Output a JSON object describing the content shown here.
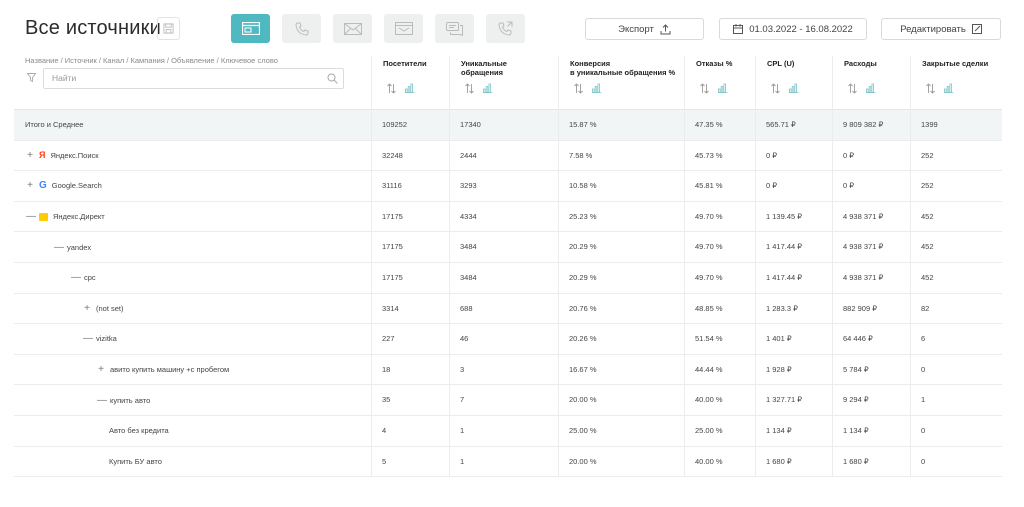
{
  "header": {
    "title": "Все источники",
    "export_label": "Экспорт",
    "date_range": "01.03.2022 - 16.08.2022",
    "edit_label": "Редактировать",
    "type_tabs": [
      "browser-icon",
      "phone-icon",
      "mail-icon",
      "envelope-icon",
      "chat-icon",
      "callback-icon"
    ],
    "active_tab": 0
  },
  "filter": {
    "breadcrumb": "Название / Источник / Канал / Кампания / Объявление / Ключевое слово",
    "search_placeholder": "Найти"
  },
  "columns": [
    "Посетители",
    "Уникальные\nобращения",
    "Конверсия\nв уникальные обращения %",
    "Отказы %",
    "CPL (U)",
    "Расходы",
    "Закрытые сделки"
  ],
  "total": {
    "label": "Итого и Среднее",
    "values": [
      "109252",
      "17340",
      "15.87 %",
      "47.35 %",
      "565.71 ₽",
      "9 809 382 ₽",
      "1399"
    ]
  },
  "rows": [
    {
      "label": "Яндекс.Поиск",
      "toggle": "+",
      "logo": "yandex",
      "values": [
        "32248",
        "2444",
        "7.58 %",
        "45.73 %",
        "0 ₽",
        "0 ₽",
        "252"
      ]
    },
    {
      "label": "Google.Search",
      "toggle": "+",
      "logo": "google",
      "values": [
        "31116",
        "3293",
        "10.58 %",
        "45.81 %",
        "0 ₽",
        "0 ₽",
        "252"
      ]
    },
    {
      "label": "Яндекс.Директ",
      "toggle": "—",
      "logo": "direct",
      "values": [
        "17175",
        "4334",
        "25.23 %",
        "49.70 %",
        "1 139.45 ₽",
        "4 938 371 ₽",
        "452"
      ]
    },
    {
      "label": "yandex",
      "toggle": "—",
      "logo": "",
      "values": [
        "17175",
        "3484",
        "20.29 %",
        "49.70 %",
        "1 417.44 ₽",
        "4 938 371 ₽",
        "452"
      ]
    },
    {
      "label": "cpc",
      "toggle": "—",
      "logo": "",
      "values": [
        "17175",
        "3484",
        "20.29 %",
        "49.70 %",
        "1 417.44 ₽",
        "4 938 371 ₽",
        "452"
      ]
    },
    {
      "label": "(not set)",
      "toggle": "+",
      "logo": "",
      "values": [
        "3314",
        "688",
        "20.76 %",
        "48.85 %",
        "1 283.3 ₽",
        "882 909 ₽",
        "82"
      ]
    },
    {
      "label": "vizitka",
      "toggle": "—",
      "logo": "",
      "values": [
        "227",
        "46",
        "20.26 %",
        "51.54 %",
        "1 401 ₽",
        "64 446 ₽",
        "6"
      ]
    },
    {
      "label": "авито купить машину +с пробегом",
      "toggle": "+",
      "logo": "",
      "values": [
        "18",
        "3",
        "16.67 %",
        "44.44 %",
        "1 928 ₽",
        "5 784 ₽",
        "0"
      ]
    },
    {
      "label": "купить авто",
      "toggle": "—",
      "logo": "",
      "values": [
        "35",
        "7",
        "20.00 %",
        "40.00 %",
        "1 327.71 ₽",
        "9 294 ₽",
        "1"
      ]
    },
    {
      "label": "Авто без кредита",
      "toggle": "",
      "logo": "",
      "values": [
        "4",
        "1",
        "25.00 %",
        "25.00 %",
        "1 134 ₽",
        "1 134 ₽",
        "0"
      ]
    },
    {
      "label": "Купить БУ авто",
      "toggle": "",
      "logo": "",
      "values": [
        "5",
        "1",
        "20.00 %",
        "40.00 %",
        "1 680 ₽",
        "1 680 ₽",
        "0"
      ]
    }
  ]
}
